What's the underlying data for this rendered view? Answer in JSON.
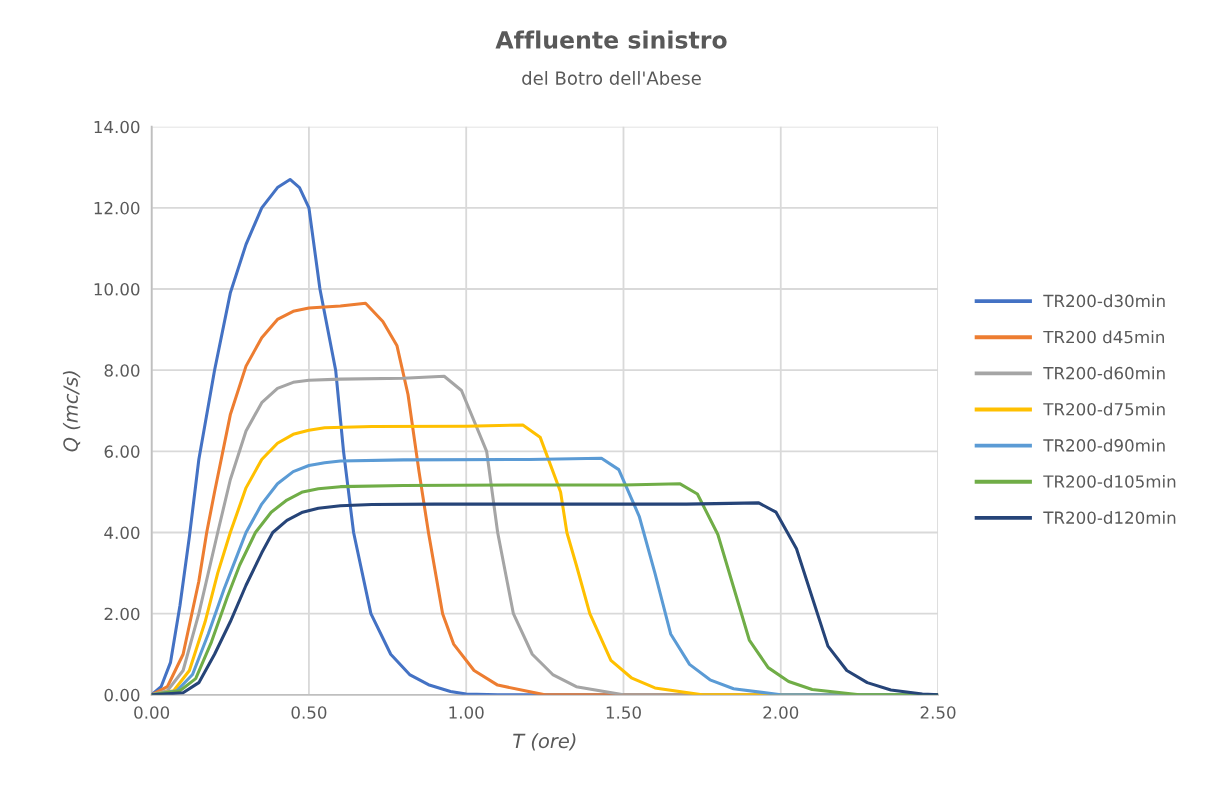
{
  "chart_data": {
    "type": "line",
    "title": "Affluente sinistro",
    "subtitle": "del Botro dell'Abese",
    "xlabel": "T (ore)",
    "ylabel": "Q (mc/s)",
    "xlim": [
      0,
      2.5
    ],
    "ylim": [
      0,
      14
    ],
    "xticks": [
      {
        "value": 0,
        "label": "0.00"
      },
      {
        "value": 0.5,
        "label": "0.50"
      },
      {
        "value": 1.0,
        "label": "1.00"
      },
      {
        "value": 1.5,
        "label": "1.50"
      },
      {
        "value": 2.0,
        "label": "2.00"
      },
      {
        "value": 2.5,
        "label": "2.50"
      }
    ],
    "yticks": [
      {
        "value": 0,
        "label": "0.00"
      },
      {
        "value": 2,
        "label": "2.00"
      },
      {
        "value": 4,
        "label": "4.00"
      },
      {
        "value": 6,
        "label": "6.00"
      },
      {
        "value": 8,
        "label": "8.00"
      },
      {
        "value": 10,
        "label": "10.00"
      },
      {
        "value": 12,
        "label": "12.00"
      },
      {
        "value": 14,
        "label": "14.00"
      }
    ],
    "grid": true,
    "legend": "right",
    "marker": "none",
    "line_style": "solid",
    "series": [
      {
        "name": "TR200-d30min",
        "color": "#4472c4",
        "x": [
          0,
          0.03,
          0.06,
          0.09,
          0.12,
          0.15,
          0.2,
          0.25,
          0.3,
          0.35,
          0.4,
          0.44,
          0.47,
          0.5,
          0.535,
          0.585,
          0.61,
          0.642,
          0.697,
          0.76,
          0.82,
          0.88,
          0.95,
          1.0,
          1.1,
          2.5
        ],
        "values": [
          0,
          0.2,
          0.8,
          2.2,
          3.9,
          5.8,
          8.0,
          9.9,
          11.1,
          12.0,
          12.5,
          12.7,
          12.5,
          12.0,
          10.0,
          8.0,
          6.0,
          4.0,
          2.0,
          1.0,
          0.5,
          0.25,
          0.08,
          0.02,
          0,
          0
        ]
      },
      {
        "name": "TR200 d45min",
        "color": "#ed7d31",
        "x": [
          0,
          0.05,
          0.1,
          0.15,
          0.175,
          0.2,
          0.25,
          0.3,
          0.35,
          0.4,
          0.45,
          0.5,
          0.6,
          0.68,
          0.735,
          0.78,
          0.815,
          0.85,
          0.88,
          0.925,
          0.96,
          1.025,
          1.1,
          1.25,
          2.5
        ],
        "values": [
          0,
          0.2,
          1.0,
          2.8,
          4.0,
          5.0,
          6.9,
          8.1,
          8.8,
          9.25,
          9.45,
          9.53,
          9.58,
          9.65,
          9.2,
          8.6,
          7.4,
          5.5,
          4.0,
          2.0,
          1.25,
          0.6,
          0.24,
          0,
          0
        ]
      },
      {
        "name": "TR200-d60min",
        "color": "#a5a5a5",
        "x": [
          0,
          0.05,
          0.1,
          0.15,
          0.21,
          0.25,
          0.3,
          0.35,
          0.4,
          0.45,
          0.5,
          0.6,
          0.8,
          0.93,
          0.985,
          1.065,
          1.1,
          1.15,
          1.21,
          1.275,
          1.35,
          1.5,
          2.5
        ],
        "values": [
          0,
          0.1,
          0.6,
          2.0,
          4.0,
          5.3,
          6.5,
          7.2,
          7.55,
          7.7,
          7.75,
          7.78,
          7.8,
          7.85,
          7.5,
          6.0,
          4.0,
          2.0,
          1.0,
          0.5,
          0.2,
          0,
          0
        ]
      },
      {
        "name": "TR200-d75min",
        "color": "#ffc000",
        "x": [
          0,
          0.07,
          0.12,
          0.17,
          0.21,
          0.25,
          0.3,
          0.35,
          0.4,
          0.45,
          0.5,
          0.55,
          0.7,
          1.0,
          1.18,
          1.235,
          1.3,
          1.32,
          1.35,
          1.393,
          1.46,
          1.525,
          1.6,
          1.75,
          2.5
        ],
        "values": [
          0,
          0.1,
          0.6,
          1.8,
          3.0,
          4.0,
          5.1,
          5.8,
          6.2,
          6.42,
          6.52,
          6.58,
          6.61,
          6.62,
          6.65,
          6.35,
          5.0,
          4.0,
          3.2,
          2.0,
          0.85,
          0.42,
          0.17,
          0,
          0
        ]
      },
      {
        "name": "TR200-d90min",
        "color": "#5b9bd5",
        "x": [
          0,
          0.08,
          0.13,
          0.18,
          0.23,
          0.27,
          0.3,
          0.35,
          0.4,
          0.45,
          0.5,
          0.55,
          0.6,
          0.8,
          1.2,
          1.43,
          1.485,
          1.55,
          1.6,
          1.65,
          1.71,
          1.775,
          1.85,
          2.0,
          2.5
        ],
        "values": [
          0,
          0.1,
          0.5,
          1.5,
          2.6,
          3.4,
          4.0,
          4.7,
          5.2,
          5.5,
          5.65,
          5.72,
          5.76,
          5.79,
          5.8,
          5.83,
          5.55,
          4.4,
          3.0,
          1.5,
          0.75,
          0.37,
          0.15,
          0,
          0
        ]
      },
      {
        "name": "TR200-d105min",
        "color": "#70ad47",
        "x": [
          0,
          0.09,
          0.14,
          0.19,
          0.24,
          0.28,
          0.33,
          0.38,
          0.43,
          0.48,
          0.53,
          0.6,
          0.8,
          1.2,
          1.5,
          1.68,
          1.735,
          1.8,
          1.85,
          1.9,
          1.96,
          2.025,
          2.1,
          2.25,
          2.5
        ],
        "values": [
          0,
          0.1,
          0.4,
          1.3,
          2.4,
          3.2,
          4.0,
          4.5,
          4.8,
          5.0,
          5.08,
          5.13,
          5.16,
          5.17,
          5.17,
          5.2,
          4.95,
          3.95,
          2.65,
          1.35,
          0.67,
          0.33,
          0.13,
          0,
          0
        ]
      },
      {
        "name": "TR200-d120min",
        "color": "#264478",
        "x": [
          0,
          0.1,
          0.15,
          0.2,
          0.25,
          0.3,
          0.35,
          0.385,
          0.43,
          0.48,
          0.53,
          0.6,
          0.7,
          0.9,
          1.3,
          1.7,
          1.93,
          1.985,
          2.05,
          2.1,
          2.15,
          2.21,
          2.275,
          2.35,
          2.45,
          2.5
        ],
        "values": [
          0,
          0.05,
          0.3,
          1.0,
          1.8,
          2.7,
          3.5,
          4.0,
          4.3,
          4.5,
          4.6,
          4.66,
          4.69,
          4.7,
          4.7,
          4.7,
          4.73,
          4.5,
          3.6,
          2.4,
          1.2,
          0.6,
          0.3,
          0.12,
          0.02,
          0
        ]
      }
    ]
  }
}
